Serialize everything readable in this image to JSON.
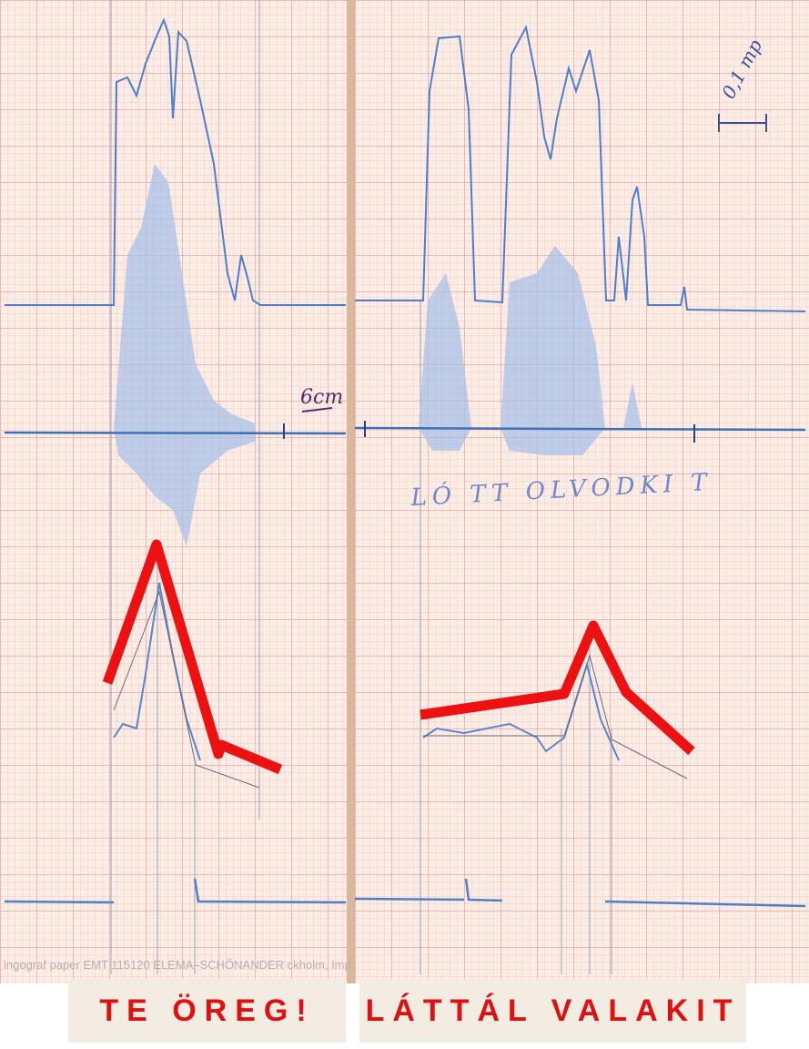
{
  "left_panel": {
    "annotation": "6cm",
    "caption": "TE ÖREG!"
  },
  "right_panel": {
    "annotation": "0,1 mp",
    "syllables": "LÓ TT OLVODKI T",
    "caption": "LÁTTÁL VALAKIT"
  },
  "footer": "ingograf paper EMT 115120 ELEMA–SCHÖNANDER ckholm, Imp."
}
